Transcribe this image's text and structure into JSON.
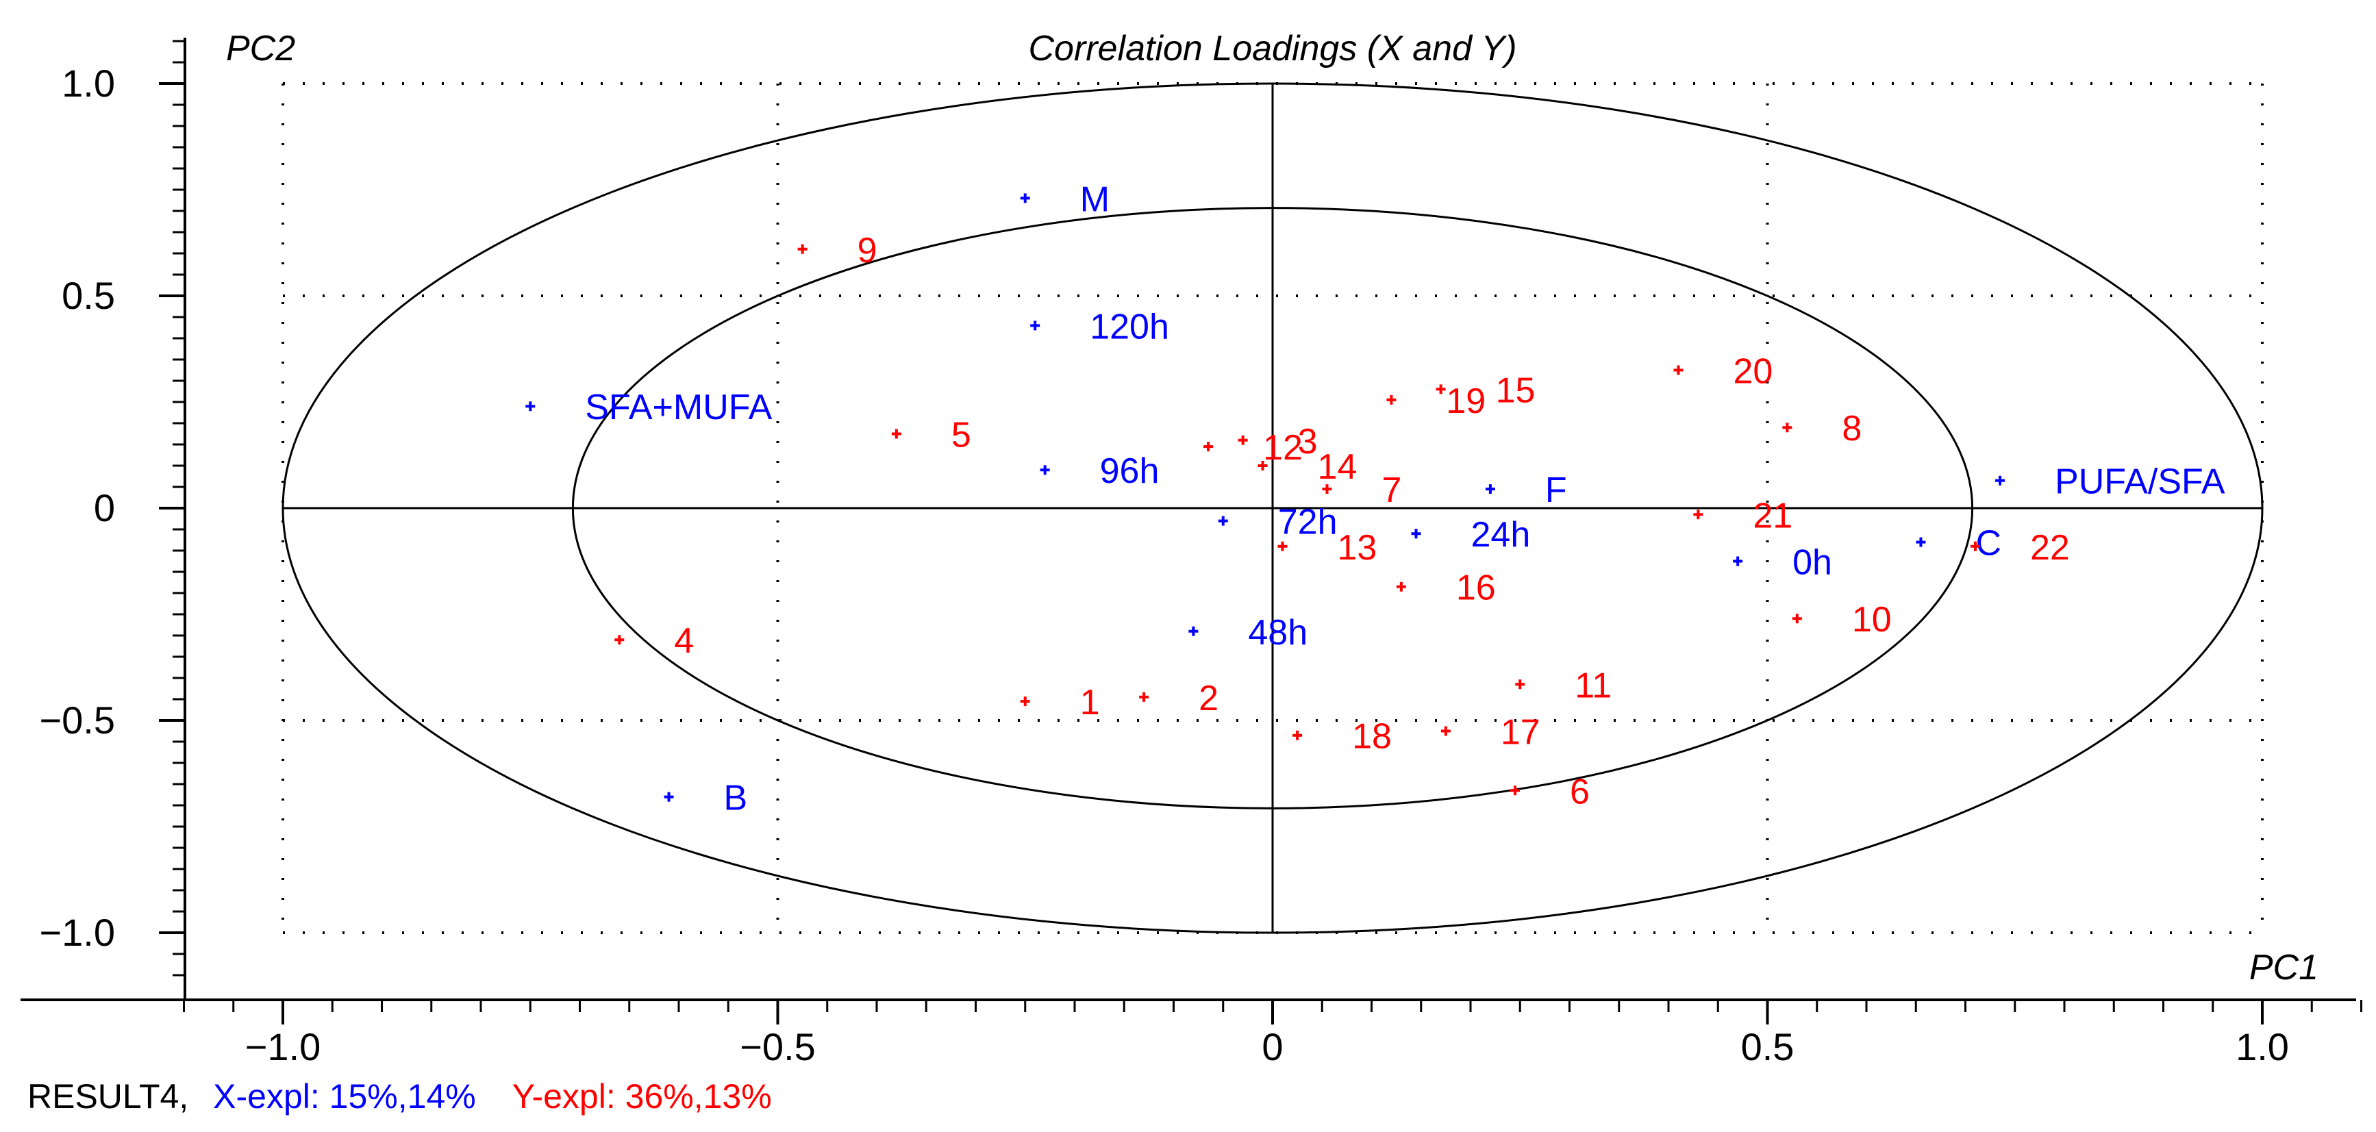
{
  "chart_data": {
    "type": "scatter",
    "title": "Correlation Loadings (X and Y)",
    "xlabel": "PC1",
    "ylabel": "PC2",
    "xlim": [
      -1.1,
      1.1
    ],
    "ylim": [
      -1.15,
      1.1
    ],
    "x_ticks": [
      -1.0,
      -0.5,
      0,
      0.5,
      1.0
    ],
    "x_tick_labels": [
      "−1.0",
      "−0.5",
      "0",
      "0.5",
      "1.0"
    ],
    "y_ticks": [
      1.0,
      0.5,
      0,
      -0.5,
      -1.0
    ],
    "y_tick_labels": [
      "1.0",
      "0.5",
      "0",
      "−0.5",
      "−1.0"
    ],
    "grid": true,
    "ellipses": [
      {
        "name": "outer",
        "radius": 1.0
      },
      {
        "name": "inner",
        "radius": 0.707
      }
    ],
    "series": [
      {
        "name": "X",
        "color": "#0000ff",
        "points": [
          {
            "label": "M",
            "x": -0.25,
            "y": 0.73
          },
          {
            "label": "120h",
            "x": -0.24,
            "y": 0.43
          },
          {
            "label": "SFA+MUFA",
            "x": -0.75,
            "y": 0.24
          },
          {
            "label": "96h",
            "x": -0.23,
            "y": 0.09
          },
          {
            "label": "72h",
            "x": -0.05,
            "y": -0.03
          },
          {
            "label": "24h",
            "x": 0.145,
            "y": -0.06
          },
          {
            "label": "F",
            "x": 0.22,
            "y": 0.045
          },
          {
            "label": "PUFA/SFA",
            "x": 0.735,
            "y": 0.065
          },
          {
            "label": "C",
            "x": 0.655,
            "y": -0.08
          },
          {
            "label": "0h",
            "x": 0.47,
            "y": -0.125
          },
          {
            "label": "48h",
            "x": -0.08,
            "y": -0.29
          },
          {
            "label": "B",
            "x": -0.61,
            "y": -0.68
          }
        ]
      },
      {
        "name": "Y",
        "color": "#ff0000",
        "points": [
          {
            "label": "9",
            "x": -0.475,
            "y": 0.61
          },
          {
            "label": "5",
            "x": -0.38,
            "y": 0.175
          },
          {
            "label": "4",
            "x": -0.66,
            "y": -0.31
          },
          {
            "label": "1",
            "x": -0.25,
            "y": -0.455
          },
          {
            "label": "2",
            "x": -0.13,
            "y": -0.445
          },
          {
            "label": "3",
            "x": -0.03,
            "y": 0.16
          },
          {
            "label": "12",
            "x": -0.065,
            "y": 0.145
          },
          {
            "label": "14",
            "x": -0.01,
            "y": 0.1
          },
          {
            "label": "7",
            "x": 0.055,
            "y": 0.045
          },
          {
            "label": "13",
            "x": 0.01,
            "y": -0.09
          },
          {
            "label": "19",
            "x": 0.12,
            "y": 0.255
          },
          {
            "label": "15",
            "x": 0.17,
            "y": 0.28
          },
          {
            "label": "16",
            "x": 0.13,
            "y": -0.185
          },
          {
            "label": "11",
            "x": 0.25,
            "y": -0.415
          },
          {
            "label": "18",
            "x": 0.025,
            "y": -0.535
          },
          {
            "label": "17",
            "x": 0.175,
            "y": -0.525
          },
          {
            "label": "6",
            "x": 0.245,
            "y": -0.665
          },
          {
            "label": "20",
            "x": 0.41,
            "y": 0.325
          },
          {
            "label": "8",
            "x": 0.52,
            "y": 0.19
          },
          {
            "label": "21",
            "x": 0.43,
            "y": -0.015
          },
          {
            "label": "22",
            "x": 0.71,
            "y": -0.09
          },
          {
            "label": "10",
            "x": 0.53,
            "y": -0.26
          }
        ]
      }
    ]
  },
  "footer": {
    "result": "RESULT4,",
    "x_expl": "X-expl: 15%,14%",
    "y_expl": "Y-expl: 36%,13%"
  },
  "colors": {
    "x_color": "#0000ff",
    "y_color": "#ff0000",
    "axis_color": "#000000"
  }
}
